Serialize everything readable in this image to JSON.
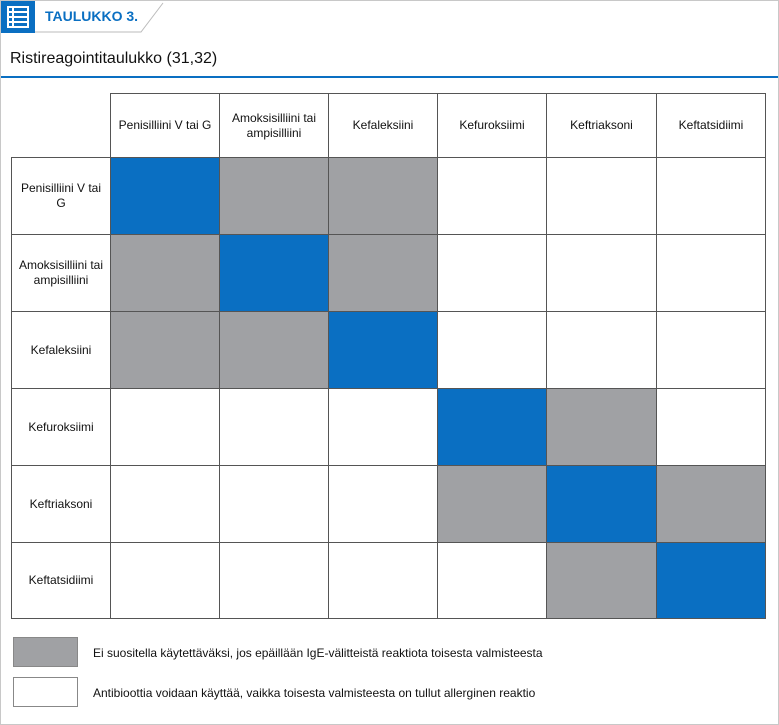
{
  "header": {
    "label": "TAULUKKO 3.",
    "title": "Ristireagointitaulukko (31,32)"
  },
  "table": {
    "columns": [
      "Penisilliini V tai G",
      "Amoksisilliini tai ampisilliini",
      "Kefaleksiini",
      "Kefuroksiimi",
      "Keftriaksoni",
      "Keftatsidiimi"
    ],
    "rows": [
      "Penisilliini V tai G",
      "Amoksisilliini tai ampisilliini",
      "Kefaleksiini",
      "Kefuroksiimi",
      "Keftriaksoni",
      "Keftatsidiimi"
    ],
    "cell_colors": [
      [
        "#0a6fc2",
        "#a0a1a4",
        "#a0a1a4",
        "#ffffff",
        "#ffffff",
        "#ffffff"
      ],
      [
        "#a0a1a4",
        "#0a6fc2",
        "#a0a1a4",
        "#ffffff",
        "#ffffff",
        "#ffffff"
      ],
      [
        "#a0a1a4",
        "#a0a1a4",
        "#0a6fc2",
        "#ffffff",
        "#ffffff",
        "#ffffff"
      ],
      [
        "#ffffff",
        "#ffffff",
        "#ffffff",
        "#0a6fc2",
        "#a0a1a4",
        "#ffffff"
      ],
      [
        "#ffffff",
        "#ffffff",
        "#ffffff",
        "#a0a1a4",
        "#0a6fc2",
        "#a0a1a4"
      ],
      [
        "#ffffff",
        "#ffffff",
        "#ffffff",
        "#ffffff",
        "#a0a1a4",
        "#0a6fc2"
      ]
    ]
  },
  "legend": [
    {
      "color": "#a0a1a4",
      "text": "Ei suositella käytettäväksi, jos epäillään IgE-välitteistä reaktiota toisesta valmisteesta"
    },
    {
      "color": "#ffffff",
      "text": "Antibioottia voidaan käyttää, vaikka toisesta valmisteesta on tullut allerginen reaktio"
    }
  ]
}
